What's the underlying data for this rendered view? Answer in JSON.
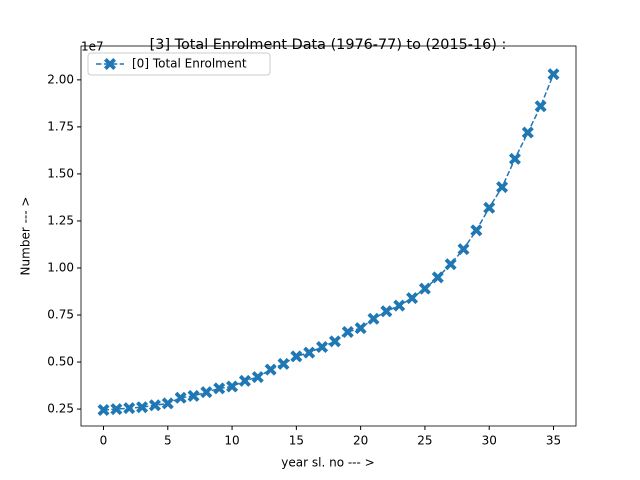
{
  "chart_data": {
    "type": "line",
    "title": "[3] Total Enrolment Data (1976-77) to (2015-16) :",
    "x_label": "year sl. no --- >",
    "y_label": "Number --- >",
    "y_offset_label": "1e7",
    "x": [
      0,
      1,
      2,
      3,
      4,
      5,
      6,
      7,
      8,
      9,
      10,
      11,
      12,
      13,
      14,
      15,
      16,
      17,
      18,
      19,
      20,
      21,
      22,
      23,
      24,
      25,
      26,
      27,
      28,
      29,
      30,
      31,
      32,
      33,
      34,
      35
    ],
    "series": [
      {
        "name": "[0] Total Enrolment",
        "color": "#1f77b4",
        "values": [
          0.245,
          0.25,
          0.255,
          0.26,
          0.27,
          0.28,
          0.31,
          0.32,
          0.34,
          0.36,
          0.37,
          0.4,
          0.42,
          0.46,
          0.49,
          0.53,
          0.55,
          0.58,
          0.61,
          0.66,
          0.68,
          0.73,
          0.77,
          0.8,
          0.84,
          0.89,
          0.95,
          1.02,
          1.1,
          1.2,
          1.32,
          1.43,
          1.58,
          1.72,
          1.86,
          2.03
        ]
      }
    ],
    "xlim": [
      -1.75,
      36.75
    ],
    "ylim": [
      0.16,
      2.18
    ],
    "xticks": [
      0,
      5,
      10,
      15,
      20,
      25,
      30,
      35
    ],
    "yticks": [
      0.25,
      {
        "value": 0.5,
        "label": "0.50"
      },
      0.75,
      {
        "value": 1,
        "label": "1.00"
      },
      1.25,
      {
        "value": 1.5,
        "label": "1.50"
      },
      1.75,
      {
        "value": 2,
        "label": "2.00"
      }
    ],
    "legend_position": "upper-left",
    "line_style": "dashed",
    "marker": "X"
  }
}
